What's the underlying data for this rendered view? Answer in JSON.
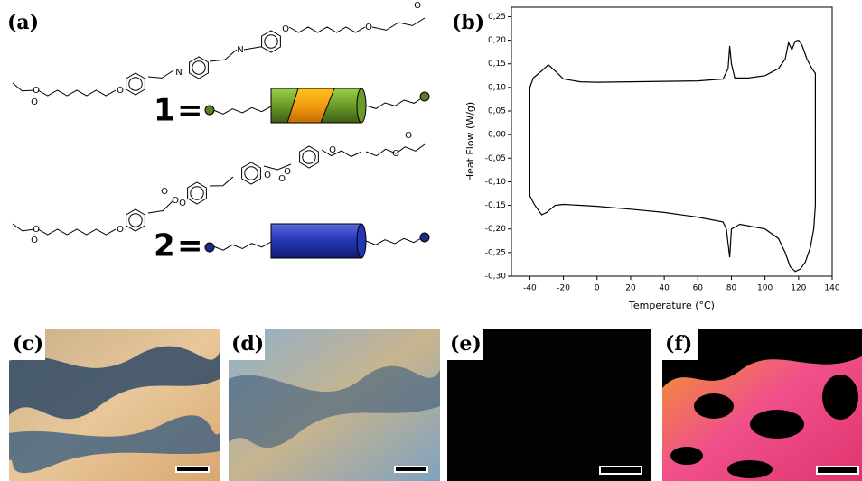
{
  "panels": {
    "a": "(a)",
    "b": "(b)",
    "c": "(c)",
    "d": "(d)",
    "e": "(e)",
    "f": "(f)"
  },
  "structures": [
    {
      "label": "1",
      "equals": "=",
      "atoms": [
        "O",
        "O",
        "O",
        "N",
        "N",
        "O",
        "O",
        "O"
      ]
    },
    {
      "label": "2",
      "equals": "=",
      "atoms": [
        "O",
        "O",
        "O",
        "O",
        "O",
        "O",
        "O",
        "O",
        "O",
        "O",
        "O",
        "O"
      ]
    }
  ],
  "chart_data": {
    "type": "line",
    "xlabel": "Temperature (°C)",
    "ylabel": "Heat Flow (W/g)",
    "xlim": [
      -51,
      140
    ],
    "ylim": [
      -0.3,
      0.27
    ],
    "xticks": [
      -40,
      -20,
      0,
      20,
      40,
      60,
      80,
      100,
      120,
      140
    ],
    "yticks": [
      {
        "value": -0.3,
        "label": "-0,30"
      },
      {
        "value": -0.25,
        "label": "-0,25"
      },
      {
        "value": -0.2,
        "label": "-0,20"
      },
      {
        "value": -0.15,
        "label": "-0,15"
      },
      {
        "value": -0.1,
        "label": "-0,10"
      },
      {
        "value": -0.05,
        "label": "-0,05"
      },
      {
        "value": 0,
        "label": "0,00"
      },
      {
        "value": 0.05,
        "label": "0,05"
      },
      {
        "value": 0.1,
        "label": "0,10"
      },
      {
        "value": 0.15,
        "label": "0,15"
      },
      {
        "value": 0.2,
        "label": "0,20"
      },
      {
        "value": 0.25,
        "label": "0,25"
      }
    ],
    "series": [
      {
        "color": "#000000",
        "x": [
          -40,
          -40,
          -38,
          -33,
          -29,
          -25,
          -20,
          -10,
          0,
          20,
          40,
          60,
          75,
          78,
          79,
          80,
          82,
          90,
          100,
          108,
          112,
          114,
          116,
          118,
          120,
          122,
          125,
          128,
          130,
          130
        ],
        "values": [
          0.0,
          0.1,
          0.12,
          0.135,
          0.148,
          0.135,
          0.118,
          0.112,
          0.111,
          0.112,
          0.113,
          0.114,
          0.118,
          0.14,
          0.188,
          0.15,
          0.12,
          0.12,
          0.125,
          0.14,
          0.16,
          0.195,
          0.18,
          0.198,
          0.2,
          0.19,
          0.16,
          0.14,
          0.13,
          0.0
        ]
      },
      {
        "color": "#000000",
        "x": [
          -40,
          -40,
          -37,
          -33,
          -30,
          -25,
          -20,
          0,
          20,
          40,
          60,
          75,
          77,
          79,
          80,
          85,
          100,
          108,
          112,
          115,
          118,
          121,
          124,
          127,
          129,
          130,
          130
        ],
        "values": [
          0.0,
          -0.13,
          -0.15,
          -0.17,
          -0.165,
          -0.15,
          -0.148,
          -0.152,
          -0.158,
          -0.165,
          -0.175,
          -0.185,
          -0.2,
          -0.26,
          -0.2,
          -0.19,
          -0.2,
          -0.22,
          -0.25,
          -0.28,
          -0.29,
          -0.285,
          -0.27,
          -0.24,
          -0.2,
          -0.15,
          0.0
        ]
      }
    ]
  }
}
